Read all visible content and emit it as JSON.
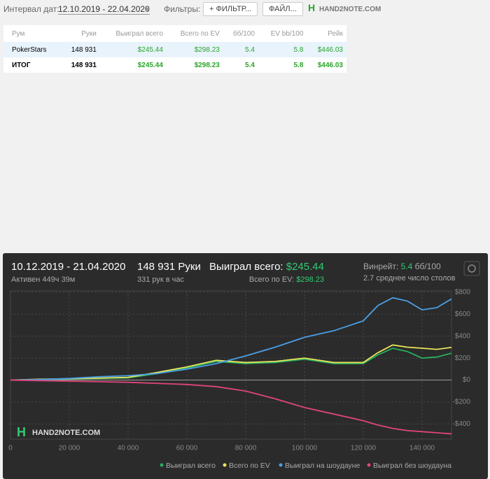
{
  "header": {
    "date_label": "Интервал дат:",
    "date_range": "12.10.2019 - 22.04.2020",
    "filters_label": "Фильтры:",
    "filter_button": "ФИЛЬТР...",
    "file_button": "ФАЙЛ...",
    "logo": "HAND2NOTE.COM"
  },
  "table": {
    "columns": [
      "Рум",
      "Руки",
      "Выиграл всего",
      "Всего по EV",
      "бб/100",
      "EV bb/100",
      "Рейк"
    ],
    "rows": [
      [
        "PokerStars",
        "148 931",
        "$245.44",
        "$298.23",
        "5.4",
        "5.8",
        "$446.03"
      ],
      [
        "ИТОГ",
        "148 931",
        "$245.44",
        "$298.23",
        "5.4",
        "5.8",
        "$446.03"
      ]
    ]
  },
  "stats": {
    "period": "10.12.2019 - 21.04.2020",
    "active": "Активен 449ч 39м",
    "hands": "148 931 Руки",
    "per_hour": "331 рук в час",
    "won_label": "Выиграл всего:",
    "won_value": "$245.44",
    "ev_label": "Всего по EV:",
    "ev_value": "$298.23",
    "winrate_label": "Винрейт:",
    "winrate_value": "5.4",
    "winrate_unit": "бб/100",
    "tables": "2.7 среднее число столов",
    "logo": "HAND2NOTE.COM"
  },
  "chart_data": {
    "type": "line",
    "x": [
      0,
      10000,
      20000,
      30000,
      40000,
      50000,
      60000,
      70000,
      80000,
      90000,
      100000,
      110000,
      120000,
      125000,
      130000,
      135000,
      140000,
      145000,
      150000
    ],
    "series": [
      {
        "name": "Выиграл всего",
        "color": "#27ae60",
        "values": [
          0,
          5,
          10,
          15,
          20,
          60,
          110,
          170,
          150,
          160,
          190,
          150,
          150,
          230,
          290,
          260,
          200,
          210,
          245
        ]
      },
      {
        "name": "Всего по EV",
        "color": "#e8e55a",
        "values": [
          0,
          8,
          12,
          18,
          25,
          70,
          120,
          180,
          160,
          170,
          200,
          160,
          160,
          250,
          320,
          300,
          290,
          280,
          298
        ]
      },
      {
        "name": "Выиграл на шоудауне",
        "color": "#4a9fe6",
        "values": [
          0,
          5,
          15,
          30,
          40,
          60,
          100,
          150,
          220,
          300,
          390,
          450,
          540,
          680,
          750,
          720,
          640,
          660,
          740
        ]
      },
      {
        "name": "Выиграл без шоудауна",
        "color": "#e0457b",
        "values": [
          0,
          -5,
          -10,
          -15,
          -20,
          -30,
          -40,
          -60,
          -100,
          -170,
          -250,
          -310,
          -370,
          -410,
          -440,
          -460,
          -470,
          -480,
          -490
        ]
      }
    ],
    "xlim": [
      0,
      150000
    ],
    "ylim": [
      -500,
      800
    ],
    "xticks": [
      0,
      {
        "value": 20000,
        "label": "20 000"
      },
      {
        "value": 40000,
        "label": "40 000"
      },
      {
        "value": 60000,
        "label": "60 000"
      },
      {
        "value": 80000,
        "label": "80 000"
      },
      {
        "value": 100000,
        "label": "100 000"
      },
      {
        "value": 120000,
        "label": "120 000"
      },
      {
        "value": 140000,
        "label": "140 000"
      }
    ],
    "yticks": [
      {
        "value": -400,
        "label": "-$400"
      },
      {
        "value": -200,
        "label": "-$200"
      },
      {
        "value": 0,
        "label": "$0"
      },
      {
        "value": 200,
        "label": "$200"
      },
      {
        "value": 400,
        "label": "$400"
      },
      {
        "value": 600,
        "label": "$600"
      },
      {
        "value": 800,
        "label": "$800"
      }
    ],
    "grid": true
  }
}
